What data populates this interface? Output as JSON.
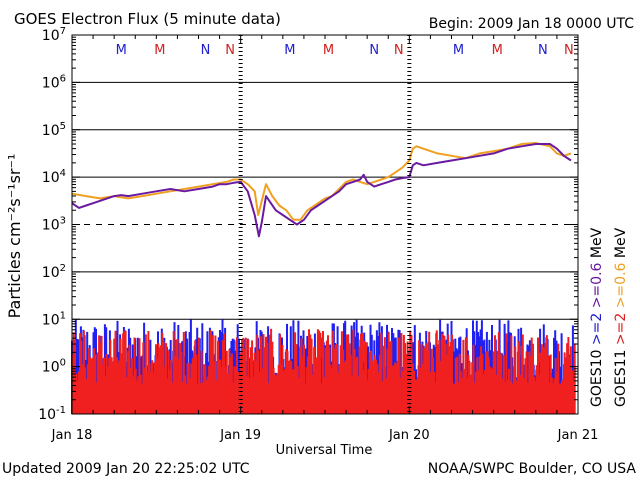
{
  "chart_data": {
    "type": "line",
    "title": "GOES Electron Flux (5 minute data)",
    "begin_label": "Begin: 2009 Jan 18 0000 UTC",
    "updated_label": "Updated 2009 Jan 20 22:25:02 UTC",
    "credit_label": "NOAA/SWPC Boulder, CO USA",
    "xlabel": "Universal Time",
    "ylabel": "Particles cm⁻²s⁻¹sr⁻¹",
    "xlim": [
      0,
      72
    ],
    "ylim_log10": [
      -1,
      7
    ],
    "yscale": "log",
    "grid_decades": [
      1,
      2,
      3,
      4,
      5,
      6
    ],
    "dashed_decade": 3,
    "x_ticks": [
      {
        "hour": 0,
        "label": "Jan 18"
      },
      {
        "hour": 24,
        "label": "Jan 19"
      },
      {
        "hour": 48,
        "label": "Jan 20"
      },
      {
        "hour": 72,
        "label": "Jan 21"
      }
    ],
    "y_ticks": [
      {
        "base": "10",
        "exp": "-1",
        "value": -1
      },
      {
        "base": "10",
        "exp": "0",
        "value": 0
      },
      {
        "base": "10",
        "exp": "1",
        "value": 1
      },
      {
        "base": "10",
        "exp": "2",
        "value": 2
      },
      {
        "base": "10",
        "exp": "3",
        "value": 3
      },
      {
        "base": "10",
        "exp": "4",
        "value": 4
      },
      {
        "base": "10",
        "exp": "5",
        "value": 5
      },
      {
        "base": "10",
        "exp": "6",
        "value": 6
      },
      {
        "base": "10",
        "exp": "7",
        "value": 7
      }
    ],
    "markers": [
      {
        "hour": 7,
        "letter": "M",
        "color": "#2020d0"
      },
      {
        "hour": 12.5,
        "letter": "M",
        "color": "#d02020"
      },
      {
        "hour": 19,
        "letter": "N",
        "color": "#2020d0"
      },
      {
        "hour": 22.5,
        "letter": "N",
        "color": "#d02020"
      },
      {
        "hour": 31,
        "letter": "M",
        "color": "#2020d0"
      },
      {
        "hour": 36.5,
        "letter": "M",
        "color": "#d02020"
      },
      {
        "hour": 43,
        "letter": "N",
        "color": "#2020d0"
      },
      {
        "hour": 46.5,
        "letter": "N",
        "color": "#d02020"
      },
      {
        "hour": 55,
        "letter": "M",
        "color": "#2020d0"
      },
      {
        "hour": 60.5,
        "letter": "M",
        "color": "#d02020"
      },
      {
        "hour": 67,
        "letter": "N",
        "color": "#2020d0"
      },
      {
        "hour": 70.7,
        "letter": "N",
        "color": "#d02020"
      }
    ],
    "legend_units": "MeV",
    "legend": [
      {
        "name": "GOES10",
        "energies": [
          {
            "label": ">=2",
            "color": "#2020d0"
          },
          {
            "label": ">=0.6",
            "color": "#6a1aa0"
          }
        ]
      },
      {
        "name": "GOES11",
        "energies": [
          {
            "label": ">=2",
            "color": "#e02020"
          },
          {
            "label": ">=0.6",
            "color": "#f0a020"
          }
        ]
      }
    ],
    "series": [
      {
        "name": "GOES10 >=0.6 MeV",
        "color": "#6a1aa0",
        "points": [
          [
            0,
            3.45
          ],
          [
            1,
            3.35
          ],
          [
            2,
            3.4
          ],
          [
            3,
            3.45
          ],
          [
            4,
            3.5
          ],
          [
            5,
            3.55
          ],
          [
            6,
            3.6
          ],
          [
            7,
            3.62
          ],
          [
            8,
            3.6
          ],
          [
            10,
            3.65
          ],
          [
            12,
            3.7
          ],
          [
            14,
            3.75
          ],
          [
            16,
            3.7
          ],
          [
            18,
            3.75
          ],
          [
            20,
            3.8
          ],
          [
            21,
            3.85
          ],
          [
            22,
            3.85
          ],
          [
            23,
            3.88
          ],
          [
            24,
            3.9
          ],
          [
            25,
            3.7
          ],
          [
            26,
            3.2
          ],
          [
            26.6,
            2.75
          ],
          [
            27,
            3.05
          ],
          [
            27.6,
            3.6
          ],
          [
            28.3,
            3.45
          ],
          [
            29,
            3.3
          ],
          [
            30,
            3.2
          ],
          [
            31,
            3.1
          ],
          [
            32,
            3.0
          ],
          [
            33,
            3.1
          ],
          [
            34,
            3.3
          ],
          [
            35,
            3.4
          ],
          [
            36,
            3.5
          ],
          [
            37,
            3.6
          ],
          [
            38,
            3.7
          ],
          [
            39,
            3.85
          ],
          [
            40,
            3.9
          ],
          [
            41,
            3.95
          ],
          [
            41.5,
            4.05
          ],
          [
            42,
            3.9
          ],
          [
            43,
            3.8
          ],
          [
            44,
            3.85
          ],
          [
            45,
            3.9
          ],
          [
            46,
            3.95
          ],
          [
            47,
            3.98
          ],
          [
            48,
            4.0
          ],
          [
            48.5,
            4.25
          ],
          [
            49,
            4.3
          ],
          [
            50,
            4.25
          ],
          [
            52,
            4.3
          ],
          [
            54,
            4.35
          ],
          [
            56,
            4.4
          ],
          [
            58,
            4.45
          ],
          [
            60,
            4.5
          ],
          [
            62,
            4.6
          ],
          [
            64,
            4.65
          ],
          [
            66,
            4.7
          ],
          [
            68,
            4.7
          ],
          [
            69,
            4.6
          ],
          [
            70,
            4.45
          ],
          [
            71,
            4.35
          ]
        ]
      },
      {
        "name": "GOES11 >=0.6 MeV",
        "color": "#f0a020",
        "points": [
          [
            0,
            3.65
          ],
          [
            2,
            3.6
          ],
          [
            4,
            3.55
          ],
          [
            6,
            3.6
          ],
          [
            8,
            3.55
          ],
          [
            10,
            3.6
          ],
          [
            12,
            3.65
          ],
          [
            14,
            3.7
          ],
          [
            16,
            3.75
          ],
          [
            18,
            3.8
          ],
          [
            20,
            3.85
          ],
          [
            22,
            3.9
          ],
          [
            23,
            3.95
          ],
          [
            24,
            3.95
          ],
          [
            25,
            3.85
          ],
          [
            26,
            3.7
          ],
          [
            26.5,
            3.2
          ],
          [
            27,
            3.5
          ],
          [
            27.6,
            3.85
          ],
          [
            28.5,
            3.6
          ],
          [
            29.5,
            3.4
          ],
          [
            30.5,
            3.3
          ],
          [
            31.5,
            3.1
          ],
          [
            32.5,
            3.1
          ],
          [
            33.5,
            3.3
          ],
          [
            35,
            3.45
          ],
          [
            36,
            3.55
          ],
          [
            37,
            3.6
          ],
          [
            38,
            3.75
          ],
          [
            39,
            3.9
          ],
          [
            40,
            3.95
          ],
          [
            41,
            3.9
          ],
          [
            42,
            3.85
          ],
          [
            43,
            3.9
          ],
          [
            44,
            3.95
          ],
          [
            45,
            4.0
          ],
          [
            46,
            4.1
          ],
          [
            47,
            4.2
          ],
          [
            48,
            4.35
          ],
          [
            48.5,
            4.6
          ],
          [
            49,
            4.65
          ],
          [
            50,
            4.6
          ],
          [
            52,
            4.5
          ],
          [
            54,
            4.45
          ],
          [
            56,
            4.4
          ],
          [
            58,
            4.5
          ],
          [
            60,
            4.55
          ],
          [
            62,
            4.6
          ],
          [
            64,
            4.7
          ],
          [
            66,
            4.72
          ],
          [
            68,
            4.65
          ],
          [
            69,
            4.5
          ],
          [
            70,
            4.45
          ],
          [
            71,
            4.5
          ]
        ]
      }
    ],
    "noise_series": [
      {
        "name": "GOES10 >=2 MeV",
        "color": "#2020f0",
        "range_log10": [
          -1,
          1
        ]
      },
      {
        "name": "GOES11 >=2 MeV",
        "color": "#f02020",
        "range_log10": [
          -1,
          0.8
        ]
      }
    ]
  }
}
